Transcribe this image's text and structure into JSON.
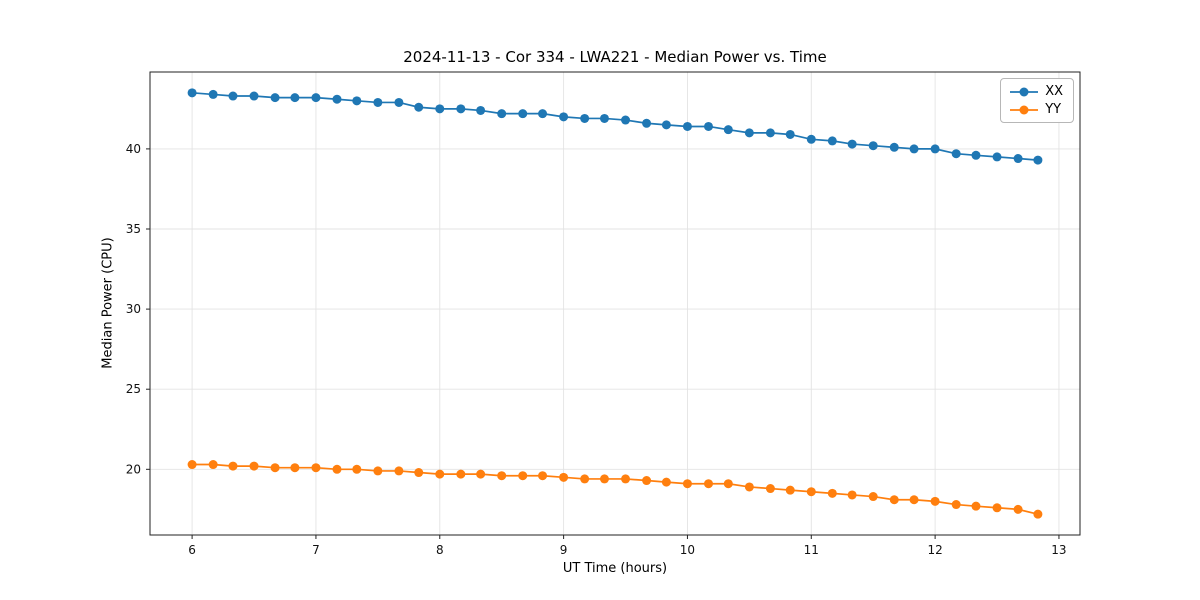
{
  "chart_data": {
    "type": "line",
    "title": "2024-11-13 - Cor 334 - LWA221 - Median Power vs. Time",
    "xlabel": "UT Time (hours)",
    "ylabel": "Median Power (CPU)",
    "xlim": [
      5.66,
      13.17
    ],
    "ylim": [
      15.9,
      44.8
    ],
    "xticks": [
      6,
      7,
      8,
      9,
      10,
      11,
      12,
      13
    ],
    "yticks": [
      20,
      25,
      30,
      35,
      40
    ],
    "grid": true,
    "legend_position": "upper right",
    "x": [
      6.0,
      6.17,
      6.33,
      6.5,
      6.67,
      6.83,
      7.0,
      7.17,
      7.33,
      7.5,
      7.67,
      7.83,
      8.0,
      8.17,
      8.33,
      8.5,
      8.67,
      8.83,
      9.0,
      9.17,
      9.33,
      9.5,
      9.67,
      9.83,
      10.0,
      10.17,
      10.33,
      10.5,
      10.67,
      10.83,
      11.0,
      11.17,
      11.33,
      11.5,
      11.67,
      11.83,
      12.0,
      12.17,
      12.33,
      12.5,
      12.67,
      12.83
    ],
    "series": [
      {
        "name": "XX",
        "color": "#1f77b4",
        "values": [
          43.5,
          43.4,
          43.3,
          43.3,
          43.2,
          43.2,
          43.2,
          43.1,
          43.0,
          42.9,
          42.9,
          42.6,
          42.5,
          42.5,
          42.4,
          42.2,
          42.2,
          42.2,
          42.0,
          41.9,
          41.9,
          41.8,
          41.6,
          41.5,
          41.4,
          41.4,
          41.2,
          41.0,
          41.0,
          40.9,
          40.6,
          40.5,
          40.3,
          40.2,
          40.1,
          40.0,
          40.0,
          39.7,
          39.6,
          39.5,
          39.4,
          39.3
        ]
      },
      {
        "name": "YY",
        "color": "#ff7f0e",
        "values": [
          20.3,
          20.3,
          20.2,
          20.2,
          20.1,
          20.1,
          20.1,
          20.0,
          20.0,
          19.9,
          19.9,
          19.8,
          19.7,
          19.7,
          19.7,
          19.6,
          19.6,
          19.6,
          19.5,
          19.4,
          19.4,
          19.4,
          19.3,
          19.2,
          19.1,
          19.1,
          19.1,
          18.9,
          18.8,
          18.7,
          18.6,
          18.5,
          18.4,
          18.3,
          18.1,
          18.1,
          18.0,
          17.8,
          17.7,
          17.6,
          17.5,
          17.2
        ]
      }
    ]
  }
}
